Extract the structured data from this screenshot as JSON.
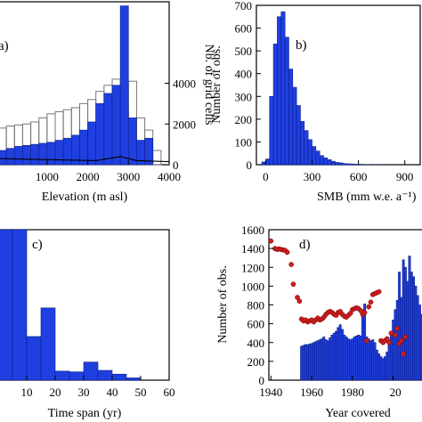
{
  "chart_data": [
    {
      "id": "a",
      "type": "bar",
      "panel_label": "a)",
      "xlabel": "Elevation (m asl)",
      "ylabel_right": "Nb. of grid cells",
      "xticks": [
        "1000",
        "2000",
        "3000",
        "4000"
      ],
      "xlim": [
        -200,
        4000
      ],
      "yticks_right": [
        "0",
        "2000",
        "4000"
      ],
      "ylim_right": [
        0,
        8000
      ],
      "bin_width": 200,
      "x": [
        -200,
        0,
        200,
        400,
        600,
        800,
        1000,
        1200,
        1400,
        1600,
        1800,
        2000,
        2200,
        2400,
        2600,
        2800,
        3000,
        3200,
        3400,
        3600,
        3800
      ],
      "series": [
        {
          "style": "filled",
          "values": [
            700,
            800,
            900,
            950,
            1000,
            1050,
            1100,
            1200,
            1300,
            1450,
            1700,
            2100,
            3000,
            3500,
            3900,
            7800,
            2300,
            1200,
            1300,
            0,
            0
          ]
        },
        {
          "style": "outline",
          "values": [
            1800,
            1900,
            1950,
            2000,
            2100,
            2300,
            2500,
            2600,
            2700,
            2800,
            3000,
            3200,
            3600,
            3900,
            4200,
            2600,
            4100,
            2300,
            1700,
            700,
            0
          ]
        }
      ]
    },
    {
      "id": "b",
      "type": "bar",
      "panel_label": "b)",
      "xlabel": "SMB (mm w.e. a⁻¹)",
      "ylabel": "Number of obs.",
      "xticks": [
        "0",
        "300",
        "600",
        "900"
      ],
      "xlim": [
        -60,
        1000
      ],
      "yticks": [
        "0",
        "100",
        "200",
        "300",
        "400",
        "500",
        "600",
        "700"
      ],
      "ylim": [
        0,
        700
      ],
      "bin_width": 25,
      "x": [
        -25,
        0,
        25,
        50,
        75,
        100,
        125,
        150,
        175,
        200,
        225,
        250,
        275,
        300,
        325,
        350,
        375,
        400,
        425,
        450,
        475,
        500,
        525,
        550,
        575,
        600,
        650,
        700
      ],
      "values": [
        12,
        25,
        300,
        530,
        650,
        672,
        560,
        420,
        340,
        260,
        190,
        150,
        110,
        80,
        60,
        40,
        30,
        22,
        15,
        10,
        8,
        5,
        4,
        3,
        2,
        2,
        1,
        1
      ]
    },
    {
      "id": "c",
      "type": "bar",
      "panel_label": "c)",
      "xlabel": "Time span (yr)",
      "xticks": [
        "10",
        "20",
        "30",
        "40",
        "50",
        "60"
      ],
      "xlim": [
        0,
        60
      ],
      "ylim": [
        0,
        1000
      ],
      "bin_width": 5,
      "x": [
        0,
        5,
        10,
        15,
        20,
        25,
        30,
        35,
        40,
        45
      ],
      "values": [
        1020,
        1020,
        290,
        480,
        60,
        55,
        120,
        65,
        40,
        15
      ]
    },
    {
      "id": "d",
      "type": "bar",
      "panel_label": "d)",
      "xlabel": "Year covered",
      "ylabel": "Number of obs.",
      "xticks": [
        "1940",
        "1960",
        "1980",
        "20"
      ],
      "xlim": [
        1939,
        2015
      ],
      "yticks": [
        "0",
        "200",
        "400",
        "600",
        "800",
        "1000",
        "1200",
        "1400",
        "1600"
      ],
      "ylim": [
        0,
        1600
      ],
      "bars": {
        "x": [
          1955,
          1956,
          1957,
          1958,
          1959,
          1960,
          1961,
          1962,
          1963,
          1964,
          1965,
          1966,
          1967,
          1968,
          1969,
          1970,
          1971,
          1972,
          1973,
          1974,
          1975,
          1976,
          1977,
          1978,
          1979,
          1980,
          1981,
          1982,
          1983,
          1984,
          1985,
          1986,
          1987,
          1988,
          1989,
          1990,
          1991,
          1992,
          1993,
          1994,
          1995,
          1996,
          1997,
          1998,
          1999,
          2000,
          2001,
          2002,
          2003,
          2004,
          2005,
          2006,
          2007,
          2008,
          2009,
          2010,
          2011,
          2012,
          2013,
          2014
        ],
        "values": [
          360,
          370,
          380,
          375,
          385,
          390,
          400,
          410,
          420,
          430,
          440,
          460,
          430,
          420,
          450,
          480,
          500,
          520,
          560,
          590,
          540,
          480,
          460,
          440,
          430,
          440,
          460,
          470,
          480,
          470,
          750,
          810,
          460,
          440,
          420,
          430,
          400,
          320,
          280,
          250,
          230,
          250,
          300,
          420,
          500,
          640,
          750,
          850,
          1150,
          880,
          1280,
          1200,
          1050,
          1320,
          1150,
          1100,
          1000,
          900,
          800,
          700
        ]
      },
      "points": {
        "x": [
          1940,
          1942,
          1943,
          1944,
          1945,
          1946,
          1947,
          1948,
          1950,
          1951,
          1953,
          1954,
          1955,
          1956,
          1957,
          1958,
          1959,
          1960,
          1961,
          1962,
          1963,
          1964,
          1965,
          1966,
          1967,
          1968,
          1969,
          1970,
          1971,
          1972,
          1973,
          1974,
          1975,
          1976,
          1977,
          1978,
          1979,
          1980,
          1981,
          1982,
          1983,
          1984,
          1985,
          1986,
          1987,
          1988,
          1989,
          1990,
          1991,
          1992,
          1993,
          1994,
          1995,
          1996,
          1997,
          1998,
          1999,
          2001,
          2002,
          2003,
          2004,
          2005,
          2006
        ],
        "values": [
          1480,
          1400,
          1390,
          1395,
          1390,
          1385,
          1380,
          1360,
          1230,
          1020,
          880,
          840,
          650,
          630,
          640,
          620,
          630,
          640,
          620,
          640,
          660,
          640,
          650,
          670,
          700,
          720,
          730,
          720,
          700,
          690,
          720,
          730,
          700,
          680,
          670,
          690,
          710,
          750,
          760,
          770,
          760,
          740,
          700,
          720,
          420,
          780,
          830,
          910,
          920,
          930,
          940,
          420,
          400,
          420,
          440,
          400,
          500,
          480,
          550,
          390,
          420,
          280,
          460
        ]
      }
    }
  ]
}
